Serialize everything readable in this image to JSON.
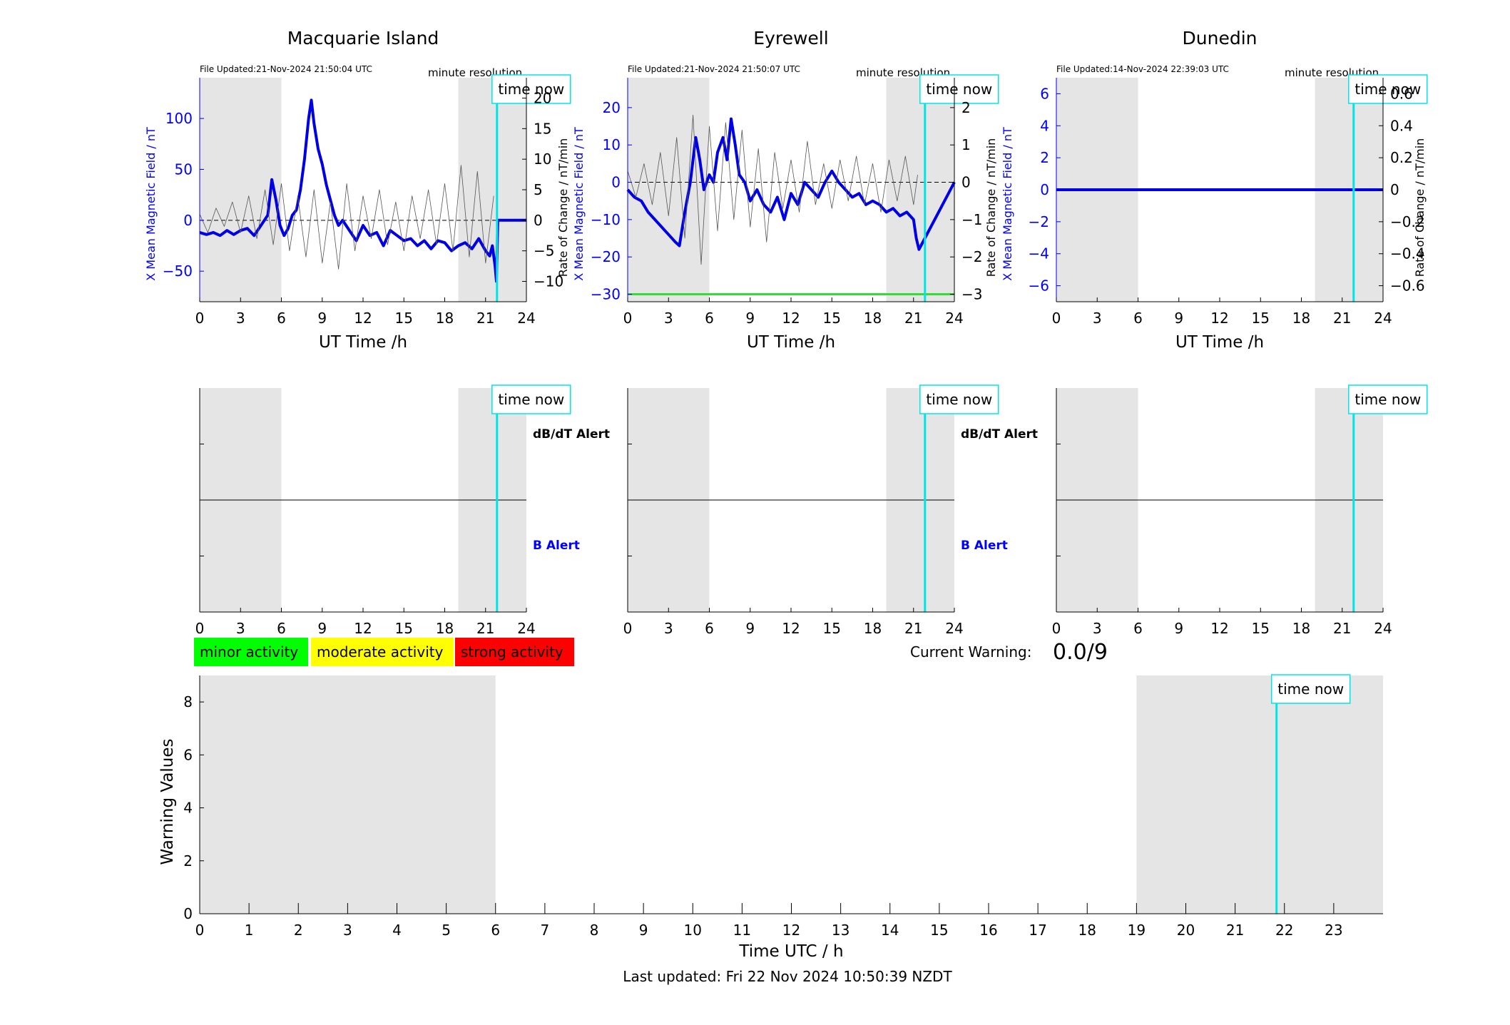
{
  "chart_data": [
    {
      "type": "line",
      "title": "Macquarie Island",
      "file_updated": "File Updated:21-Nov-2024 21:50:04 UTC",
      "resolution": "minute resolution",
      "time_now_label": "time now",
      "time_now": 21.84,
      "xlabel": "UT Time /h",
      "ylabel": "X Mean Magnetic Field / nT",
      "y2label": "Rate of Change / nT/min",
      "xlim": [
        0,
        24
      ],
      "ylim": [
        -80,
        140
      ],
      "y2lim": [
        -13.33,
        23.33
      ],
      "xticks": [
        "0",
        "3",
        "6",
        "9",
        "12",
        "15",
        "18",
        "21",
        "24"
      ],
      "yticks": [
        -50,
        0,
        50,
        100
      ],
      "y2ticks": [
        -10,
        -5,
        0,
        5,
        10,
        15,
        20
      ],
      "shaded": [
        [
          0,
          6
        ],
        [
          19,
          24
        ]
      ],
      "series": [
        {
          "role": "field",
          "color": "#0000e6",
          "x": [
            0,
            0.5,
            1,
            1.5,
            2,
            2.5,
            3,
            3.5,
            4,
            4.5,
            5,
            5.3,
            5.6,
            5.9,
            6.2,
            6.5,
            6.8,
            7.1,
            7.4,
            7.7,
            8,
            8.2,
            8.4,
            8.7,
            9,
            9.3,
            9.6,
            9.9,
            10.2,
            10.5,
            11,
            11.5,
            12,
            12.5,
            13,
            13.5,
            14,
            14.5,
            15,
            15.5,
            16,
            16.5,
            17,
            17.5,
            18,
            18.5,
            19,
            19.5,
            20,
            20.5,
            21,
            21.3,
            21.5,
            21.7,
            21.8,
            21.9,
            24
          ],
          "y": [
            -12,
            -14,
            -12,
            -15,
            -10,
            -14,
            -10,
            -8,
            -15,
            -5,
            5,
            40,
            20,
            -5,
            -15,
            -8,
            5,
            10,
            30,
            60,
            100,
            118,
            95,
            70,
            55,
            35,
            20,
            5,
            -5,
            0,
            -10,
            -20,
            -5,
            -15,
            -12,
            -25,
            -10,
            -15,
            -20,
            -18,
            -25,
            -20,
            -28,
            -20,
            -22,
            -30,
            -25,
            -22,
            -28,
            -18,
            -30,
            -35,
            -25,
            -45,
            -60,
            0,
            0
          ]
        },
        {
          "role": "rate",
          "color": "#555555",
          "x": [
            0,
            0.6,
            1.2,
            1.8,
            2.4,
            3,
            3.6,
            4.2,
            4.8,
            5.4,
            6,
            6.6,
            7.2,
            7.8,
            8.4,
            9,
            9.6,
            10.2,
            10.8,
            11.4,
            12,
            12.6,
            13.2,
            13.8,
            14.4,
            15,
            15.6,
            16.2,
            16.8,
            17.4,
            18,
            18.6,
            19.2,
            19.8,
            20.4,
            21,
            21.6
          ],
          "y": [
            1,
            -2,
            2,
            -1,
            3,
            -2,
            4,
            -3,
            5,
            -4,
            6,
            -5,
            4,
            -6,
            5,
            -7,
            3,
            -8,
            6,
            -5,
            4,
            -3,
            5,
            -4,
            3,
            -5,
            4,
            -3,
            5,
            -4,
            6,
            -5,
            9,
            -6,
            8,
            -7,
            4
          ]
        }
      ]
    },
    {
      "type": "line",
      "title": "Eyrewell",
      "file_updated": "File Updated:21-Nov-2024 21:50:07 UTC",
      "resolution": "minute resolution",
      "time_now_label": "time now",
      "time_now": 21.84,
      "xlabel": "UT Time /h",
      "ylabel": "X Mean Magnetic Field / nT",
      "y2label": "Rate of Change / nT/min",
      "xlim": [
        0,
        24
      ],
      "ylim": [
        -32,
        28
      ],
      "y2lim": [
        -3.2,
        2.8
      ],
      "xticks": [
        "0",
        "3",
        "6",
        "9",
        "12",
        "15",
        "18",
        "21",
        "24"
      ],
      "yticks": [
        -30,
        -20,
        -10,
        0,
        10,
        20
      ],
      "y2ticks": [
        -3,
        -2,
        -1,
        0,
        1,
        2
      ],
      "shaded": [
        [
          0,
          6
        ],
        [
          19,
          24
        ]
      ],
      "threshold_line": -30,
      "threshold_color": "#33dd33",
      "series": [
        {
          "role": "field",
          "color": "#0000e6",
          "x": [
            0,
            0.5,
            1,
            1.5,
            2,
            2.5,
            3,
            3.5,
            3.8,
            4.2,
            4.6,
            5,
            5.3,
            5.6,
            6,
            6.3,
            6.6,
            7,
            7.3,
            7.6,
            7.9,
            8.2,
            8.6,
            9,
            9.5,
            10,
            10.5,
            11,
            11.5,
            12,
            12.5,
            13,
            13.5,
            14,
            14.5,
            15,
            15.5,
            16,
            16.5,
            17,
            17.5,
            18,
            18.5,
            19,
            19.5,
            20,
            20.5,
            21,
            21.2,
            21.4,
            24
          ],
          "y": [
            -2,
            -4,
            -5,
            -8,
            -10,
            -12,
            -14,
            -16,
            -17,
            -8,
            0,
            12,
            6,
            -2,
            2,
            0,
            8,
            12,
            6,
            17,
            10,
            2,
            0,
            -5,
            -2,
            -6,
            -8,
            -4,
            -10,
            -3,
            -6,
            0,
            -2,
            -4,
            0,
            3,
            0,
            -2,
            -4,
            -3,
            -6,
            -5,
            -6,
            -8,
            -7,
            -9,
            -8,
            -10,
            -15,
            -18,
            0
          ]
        },
        {
          "role": "rate",
          "color": "#555555",
          "x": [
            0,
            0.6,
            1.2,
            1.8,
            2.4,
            3,
            3.6,
            4.2,
            4.8,
            5.4,
            6,
            6.6,
            7.2,
            7.8,
            8.4,
            9,
            9.6,
            10.2,
            10.8,
            11.4,
            12,
            12.6,
            13.2,
            13.8,
            14.4,
            15,
            15.6,
            16.2,
            16.8,
            17.4,
            18,
            18.6,
            19.2,
            19.8,
            20.4,
            21,
            21.3
          ],
          "y": [
            0.3,
            -0.4,
            0.5,
            -0.6,
            0.8,
            -0.9,
            1.2,
            -1.5,
            1.8,
            -2.2,
            1.5,
            -1.3,
            1.6,
            -1.0,
            1.4,
            -1.2,
            0.9,
            -1.6,
            0.8,
            -0.7,
            0.6,
            -0.8,
            1.1,
            -0.6,
            0.5,
            -0.7,
            0.6,
            -0.5,
            0.7,
            -0.6,
            0.5,
            -0.8,
            0.6,
            -0.5,
            0.7,
            -0.6,
            0.2
          ]
        }
      ]
    },
    {
      "type": "line",
      "title": "Dunedin",
      "file_updated": "File Updated:14-Nov-2024 22:39:03 UTC",
      "resolution": "minute resolution",
      "time_now_label": "time now",
      "time_now": 21.84,
      "xlabel": "UT Time /h",
      "ylabel": "X Mean Magnetic Field / nT",
      "y2label": "Rate of Change / nT/min",
      "xlim": [
        0,
        24
      ],
      "ylim": [
        -7,
        7
      ],
      "y2lim": [
        -0.7,
        0.7
      ],
      "xticks": [
        "0",
        "3",
        "6",
        "9",
        "12",
        "15",
        "18",
        "21",
        "24"
      ],
      "yticks": [
        -6,
        -4,
        -2,
        0,
        2,
        4,
        6
      ],
      "y2ticks": [
        -0.6,
        -0.4,
        -0.2,
        0,
        0.2,
        0.4,
        0.6
      ],
      "y2ticklabels": [
        "-0.6",
        "-0.4",
        "-0.2",
        "0",
        "0.2",
        "0.4",
        "0.6"
      ],
      "shaded": [
        [
          0,
          6
        ],
        [
          19,
          24
        ]
      ],
      "series": [
        {
          "role": "field",
          "color": "#0000e6",
          "x": [
            0,
            24
          ],
          "y": [
            0,
            0
          ]
        }
      ]
    }
  ],
  "alert_panels": [
    {
      "station": "Macquarie Island",
      "time_now_label": "time now",
      "time_now": 21.84,
      "xticks": [
        "0",
        "3",
        "6",
        "9",
        "12",
        "15",
        "18",
        "21",
        "24"
      ],
      "upper_label": "dB/dT Alert",
      "lower_label": "B Alert",
      "shaded": [
        [
          0,
          6
        ],
        [
          19,
          24
        ]
      ]
    },
    {
      "station": "Eyrewell",
      "time_now_label": "time now",
      "time_now": 21.84,
      "xticks": [
        "0",
        "3",
        "6",
        "9",
        "12",
        "15",
        "18",
        "21",
        "24"
      ],
      "upper_label": "dB/dT Alert",
      "lower_label": "B Alert",
      "shaded": [
        [
          0,
          6
        ],
        [
          19,
          24
        ]
      ]
    },
    {
      "station": "Dunedin",
      "time_now_label": "time now",
      "time_now": 21.84,
      "xticks": [
        "0",
        "3",
        "6",
        "9",
        "12",
        "15",
        "18",
        "21",
        "24"
      ],
      "shaded": [
        [
          0,
          6
        ],
        [
          19,
          24
        ]
      ]
    }
  ],
  "legend": {
    "items": [
      {
        "label": "minor activity",
        "color": "#00ff00"
      },
      {
        "label": "moderate activity",
        "color": "#ffff00"
      },
      {
        "label": "strong activity",
        "color": "#ff0000"
      }
    ]
  },
  "current_warning": {
    "label": "Current Warning:",
    "value": "0.0/9"
  },
  "warning_chart": {
    "type": "bar",
    "xlabel": "Time UTC / h",
    "ylabel": "Warning Values",
    "xlim": [
      0,
      24
    ],
    "ylim": [
      0,
      9
    ],
    "xticks": [
      "0",
      "1",
      "2",
      "3",
      "4",
      "5",
      "6",
      "7",
      "8",
      "9",
      "10",
      "11",
      "12",
      "13",
      "14",
      "15",
      "16",
      "17",
      "18",
      "19",
      "20",
      "21",
      "22",
      "23"
    ],
    "yticks": [
      "0",
      "2",
      "4",
      "6",
      "8"
    ],
    "shaded": [
      [
        0,
        6
      ],
      [
        19,
        24
      ]
    ],
    "time_now_label": "time now",
    "time_now": 21.84
  },
  "footer": {
    "last_updated": "Last updated: Fri 22 Nov 2024 10:50:39 NZDT"
  },
  "colors": {
    "shade": "#e5e5e5",
    "time_now": "#00e5e5",
    "field": "#0000e6",
    "rate": "#555555",
    "axis_left": "#0000ff"
  }
}
